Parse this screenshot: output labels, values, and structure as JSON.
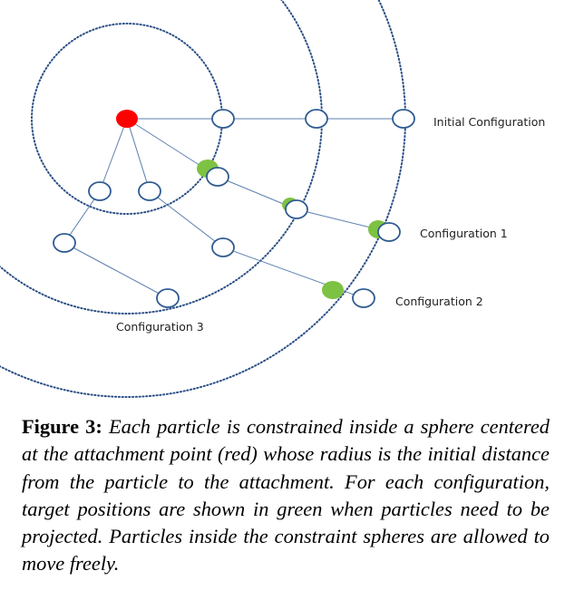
{
  "diagram": {
    "labels": {
      "initial": "Initial Configuration",
      "config1": "Configuration 1",
      "config2": "Configuration 2",
      "config3": "Configuration 3"
    },
    "colors": {
      "attachment": "#ff0000",
      "target": "#7dc242",
      "particle_outline": "#2f5b91",
      "link": "#5b7fae",
      "sphere": "#2b4f86"
    }
  },
  "caption": {
    "label": "Figure 3:",
    "text": "Each particle is constrained inside a sphere centered at the attachment point (red) whose radius is the initial distance from the particle to the attachment. For each configuration, target positions are shown in green when particles need to be projected. Particles inside the constraint spheres are allowed to move freely."
  }
}
